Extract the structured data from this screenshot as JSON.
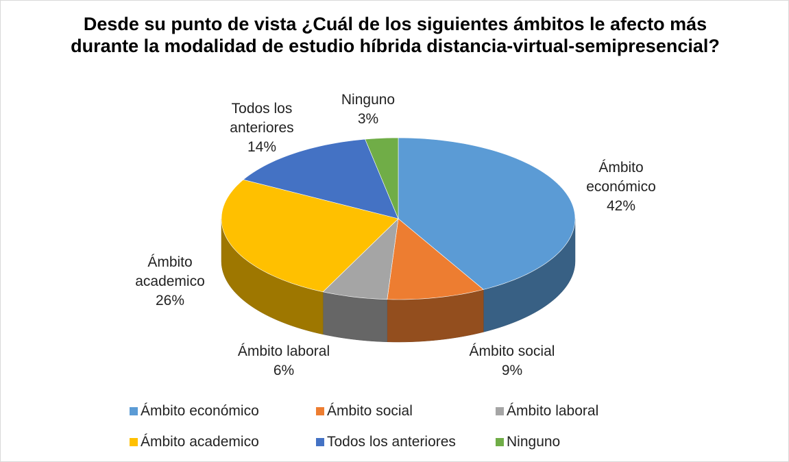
{
  "chart_data": {
    "type": "pie3d",
    "title": "Desde su punto de vista ¿Cuál de los siguientes ámbitos le afecto más durante la modalidad de estudio híbrida distancia-virtual-semipresencial?",
    "categories": [
      "Ámbito económico",
      "Ámbito social",
      "Ámbito laboral",
      "Ámbito academico",
      "Todos los anteriores",
      "Ninguno"
    ],
    "values": [
      42,
      9,
      6,
      26,
      14,
      3
    ],
    "value_labels": [
      "42%",
      "9%",
      "6%",
      "26%",
      "14%",
      "3%"
    ],
    "colors": [
      "#5b9bd5",
      "#ed7d31",
      "#a5a5a5",
      "#ffc000",
      "#4472c4",
      "#70ad47"
    ],
    "legend": "bottom"
  }
}
